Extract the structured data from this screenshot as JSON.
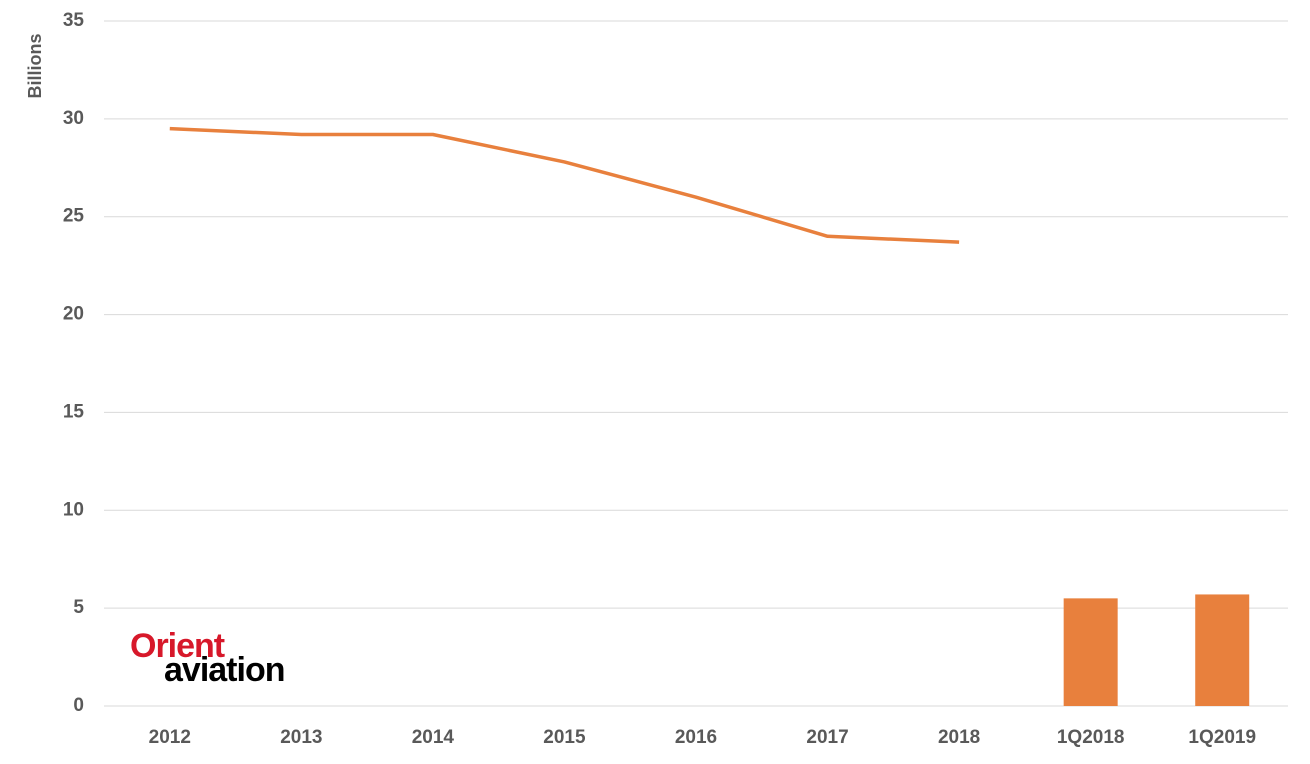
{
  "chart_data": {
    "type": "combo",
    "y_label": "Billions",
    "categories": [
      "2012",
      "2013",
      "2014",
      "2015",
      "2016",
      "2017",
      "2018",
      "1Q2018",
      "1Q2019"
    ],
    "series": [
      {
        "type": "line",
        "color": "#e8803d",
        "values": [
          29.5,
          29.2,
          29.2,
          27.8,
          26.0,
          24.0,
          23.7,
          null,
          null
        ]
      },
      {
        "type": "bar",
        "color": "#e8803d",
        "values": [
          null,
          null,
          null,
          null,
          null,
          null,
          null,
          5.5,
          5.7
        ]
      }
    ],
    "ylim": [
      0,
      35
    ],
    "yticks": [
      0,
      5,
      10,
      15,
      20,
      25,
      30,
      35
    ],
    "grid": true,
    "logo": {
      "line1": "Orient",
      "line2": "aviation"
    }
  }
}
